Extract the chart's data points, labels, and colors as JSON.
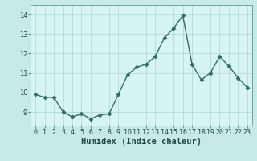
{
  "x": [
    0,
    1,
    2,
    3,
    4,
    5,
    6,
    7,
    8,
    9,
    10,
    11,
    12,
    13,
    14,
    15,
    16,
    17,
    18,
    19,
    20,
    21,
    22,
    23
  ],
  "y": [
    9.9,
    9.75,
    9.75,
    9.0,
    8.75,
    8.9,
    8.65,
    8.85,
    8.9,
    9.9,
    10.9,
    11.3,
    11.45,
    11.85,
    12.8,
    13.3,
    13.95,
    11.45,
    10.65,
    11.0,
    11.85,
    11.35,
    10.75,
    10.25
  ],
  "line_color": "#2e6e63",
  "marker": "D",
  "marker_size": 2.5,
  "linewidth": 1.0,
  "xlabel": "Humidex (Indice chaleur)",
  "xlabel_fontsize": 7.5,
  "xlim": [
    -0.5,
    23.5
  ],
  "ylim": [
    8.3,
    14.5
  ],
  "yticks": [
    9,
    10,
    11,
    12,
    13,
    14
  ],
  "xticks": [
    0,
    1,
    2,
    3,
    4,
    5,
    6,
    7,
    8,
    9,
    10,
    11,
    12,
    13,
    14,
    15,
    16,
    17,
    18,
    19,
    20,
    21,
    22,
    23
  ],
  "xtick_labels": [
    "0",
    "1",
    "2",
    "3",
    "4",
    "5",
    "6",
    "7",
    "8",
    "9",
    "10",
    "11",
    "12",
    "13",
    "14",
    "15",
    "16",
    "17",
    "18",
    "19",
    "20",
    "21",
    "22",
    "23"
  ],
  "tick_fontsize": 6,
  "bg_color": "#c8eae6",
  "plot_bg_color": "#d6f5f2",
  "grid_color": "#b8d8d4",
  "grid_linewidth": 0.6,
  "spine_color": "#5a9e94"
}
